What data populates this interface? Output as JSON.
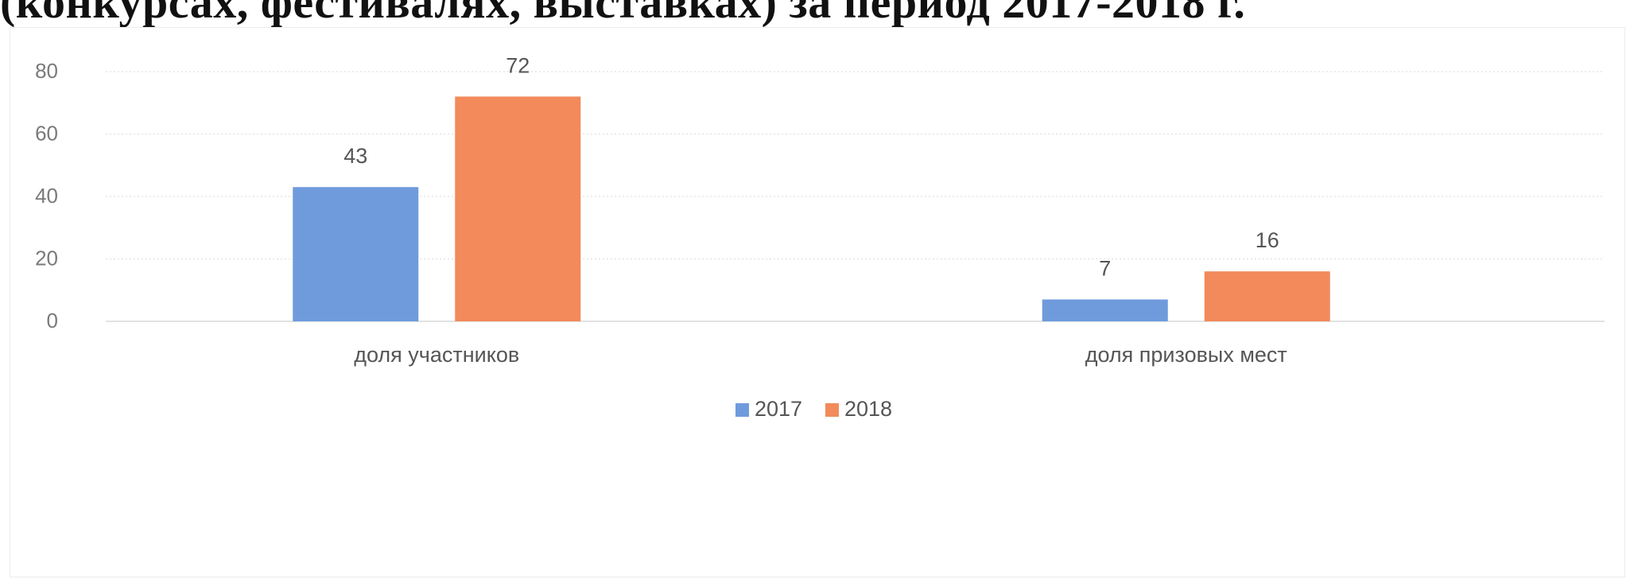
{
  "page_title": "(конкурсах, фестивалях, выставках) за период 2017-2018 г.",
  "chart_data": {
    "type": "bar",
    "title": "",
    "xlabel": "",
    "ylabel": "",
    "categories": [
      "доля участников",
      "доля призовых мест"
    ],
    "series": [
      {
        "name": "2017",
        "values": [
          43,
          7
        ],
        "color": "#6F9BDD"
      },
      {
        "name": "2018",
        "values": [
          72,
          16
        ],
        "color": "#F28A5B"
      }
    ],
    "ylim": [
      0,
      80
    ],
    "yticks": [
      0,
      20,
      40,
      60,
      80
    ],
    "ytick_labels": [
      "0",
      "20",
      "40",
      "60",
      "80"
    ],
    "grid": true,
    "legend_position": "bottom"
  }
}
